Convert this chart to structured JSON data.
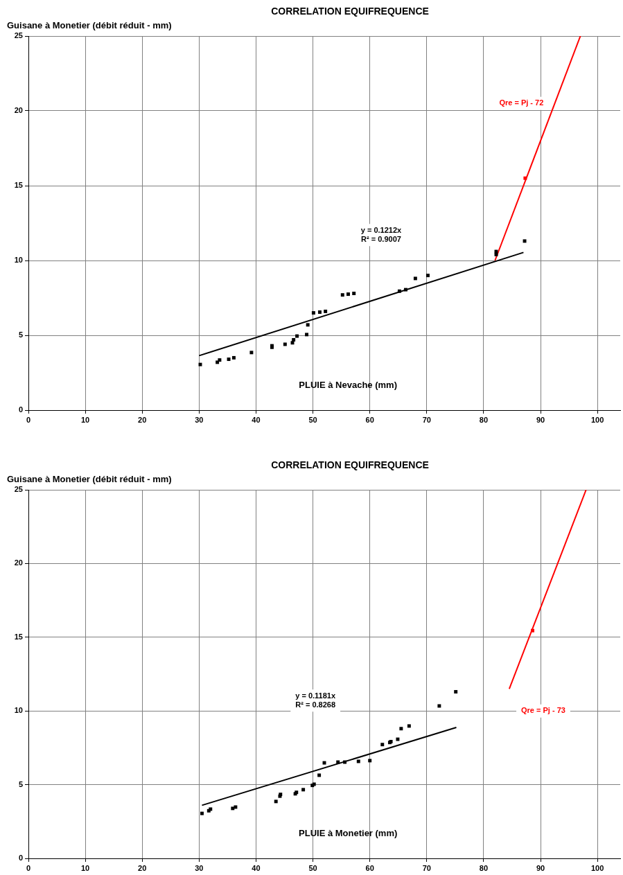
{
  "chart_data": [
    {
      "type": "scatter",
      "title": "CORRELATION EQUIFREQUENCE",
      "xlabel": "PLUIE à Nevache (mm)",
      "ylabel": "Guisane à Monetier (débit réduit - mm)",
      "xlim": [
        0,
        104
      ],
      "ylim": [
        0,
        25
      ],
      "xticks": [
        0,
        10,
        20,
        30,
        40,
        50,
        60,
        70,
        80,
        90,
        100
      ],
      "yticks": [
        0,
        5,
        10,
        15,
        20,
        25
      ],
      "grid": true,
      "legend": false,
      "marker": "square",
      "series": [
        {
          "type": "scatter",
          "color": "#000000",
          "x": [
            30.2,
            33.2,
            33.6,
            35.2,
            36.1,
            39.2,
            42.8,
            42.8,
            45.1,
            46.4,
            46.6,
            47.2,
            48.9,
            49.1,
            50.1,
            51.2,
            52.2,
            55.2,
            56.2,
            57.2,
            65.2,
            66.3,
            68.0,
            70.2,
            82.2,
            82.2,
            87.2
          ],
          "values": [
            3.05,
            3.2,
            3.35,
            3.4,
            3.5,
            3.85,
            4.3,
            4.2,
            4.4,
            4.5,
            4.7,
            4.95,
            5.05,
            5.7,
            6.5,
            6.55,
            6.6,
            7.7,
            7.75,
            7.8,
            7.95,
            8.05,
            8.8,
            9.0,
            10.6,
            10.4,
            11.3
          ]
        },
        {
          "type": "line",
          "color": "#000000",
          "marker": "none",
          "x": [
            30,
            87
          ],
          "values": [
            3.64,
            10.54
          ]
        },
        {
          "type": "scatter",
          "color": "#ff0000",
          "x": [
            87.3
          ],
          "values": [
            15.5
          ]
        },
        {
          "type": "line",
          "color": "#ff0000",
          "marker": "none",
          "x": [
            82,
            97
          ],
          "values": [
            10,
            25
          ]
        }
      ],
      "annotations": [
        "y = 0.1212x\nR² = 0.9007",
        "Qre = Pj - 72"
      ]
    },
    {
      "type": "scatter",
      "title": "CORRELATION EQUIFREQUENCE",
      "xlabel": "PLUIE à Monetier (mm)",
      "ylabel": "Guisane à Monetier (débit réduit - mm)",
      "xlim": [
        0,
        104
      ],
      "ylim": [
        0,
        25
      ],
      "xticks": [
        0,
        10,
        20,
        30,
        40,
        50,
        60,
        70,
        80,
        90,
        100
      ],
      "yticks": [
        0,
        5,
        10,
        15,
        20,
        25
      ],
      "grid": true,
      "legend": false,
      "marker": "square",
      "series": [
        {
          "type": "scatter",
          "color": "#000000",
          "x": [
            30.5,
            31.7,
            32.0,
            35.9,
            36.4,
            43.5,
            44.2,
            44.3,
            46.9,
            47.1,
            48.3,
            49.9,
            50.2,
            51.1,
            52.0,
            54.4,
            55.6,
            58.0,
            60.0,
            62.2,
            63.5,
            63.7,
            64.9,
            65.5,
            66.9,
            72.2,
            75.1
          ],
          "values": [
            3.05,
            3.23,
            3.34,
            3.39,
            3.48,
            3.86,
            4.22,
            4.34,
            4.38,
            4.48,
            4.66,
            4.95,
            5.03,
            5.64,
            6.48,
            6.53,
            6.53,
            6.58,
            6.63,
            7.72,
            7.86,
            7.92,
            8.08,
            8.8,
            8.98,
            10.34,
            11.3
          ]
        },
        {
          "type": "line",
          "color": "#000000",
          "marker": "none",
          "x": [
            30.5,
            75.2
          ],
          "values": [
            3.6,
            8.88
          ]
        },
        {
          "type": "scatter",
          "color": "#ff0000",
          "x": [
            88.6
          ],
          "values": [
            15.45
          ]
        },
        {
          "type": "line",
          "color": "#ff0000",
          "marker": "none",
          "x": [
            84.5,
            98
          ],
          "values": [
            11.5,
            25
          ]
        }
      ],
      "annotations": [
        "y = 0.1181x\nR² = 0.8268",
        "Qre = Pj - 73"
      ]
    }
  ]
}
